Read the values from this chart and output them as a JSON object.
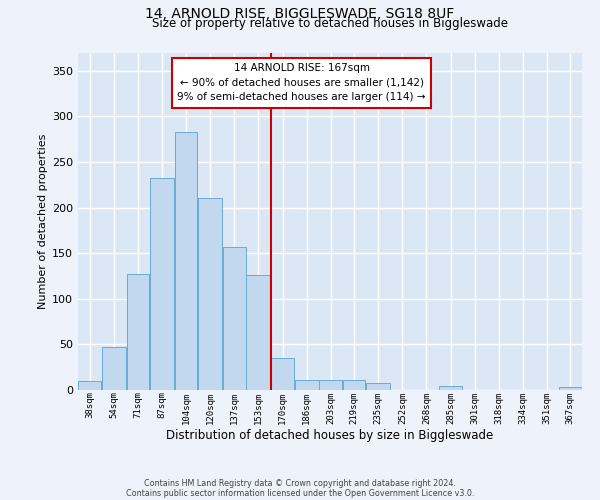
{
  "title": "14, ARNOLD RISE, BIGGLESWADE, SG18 8UF",
  "subtitle": "Size of property relative to detached houses in Biggleswade",
  "xlabel": "Distribution of detached houses by size in Biggleswade",
  "ylabel": "Number of detached properties",
  "bar_labels": [
    "38sqm",
    "54sqm",
    "71sqm",
    "87sqm",
    "104sqm",
    "120sqm",
    "137sqm",
    "153sqm",
    "170sqm",
    "186sqm",
    "203sqm",
    "219sqm",
    "235sqm",
    "252sqm",
    "268sqm",
    "285sqm",
    "301sqm",
    "318sqm",
    "334sqm",
    "351sqm",
    "367sqm"
  ],
  "bar_values": [
    10,
    47,
    127,
    232,
    283,
    211,
    157,
    126,
    35,
    11,
    11,
    11,
    8,
    0,
    0,
    4,
    0,
    0,
    0,
    0,
    3
  ],
  "bar_color": "#c2d8ee",
  "bar_edge_color": "#6aaad4",
  "bin_edges": [
    38,
    54,
    71,
    87,
    104,
    120,
    137,
    153,
    170,
    186,
    203,
    219,
    235,
    252,
    268,
    285,
    301,
    318,
    334,
    351,
    367,
    383
  ],
  "annotation_title": "14 ARNOLD RISE: 167sqm",
  "annotation_line1": "← 90% of detached houses are smaller (1,142)",
  "annotation_line2": "9% of semi-detached houses are larger (114) →",
  "vline_color": "#cc0000",
  "annotation_box_edgecolor": "#cc0000",
  "fig_facecolor": "#eef2fa",
  "ax_facecolor": "#dce7f5",
  "grid_color": "#ffffff",
  "footer1": "Contains HM Land Registry data © Crown copyright and database right 2024.",
  "footer2": "Contains public sector information licensed under the Open Government Licence v3.0.",
  "ylim": [
    0,
    370
  ],
  "yticks": [
    0,
    50,
    100,
    150,
    200,
    250,
    300,
    350
  ]
}
